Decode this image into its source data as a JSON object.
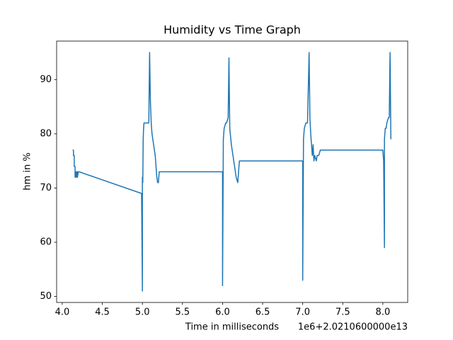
{
  "chart_data": {
    "type": "line",
    "title": "Humidity vs Time Graph",
    "x_label": "Time in milliseconds",
    "y_label": "hm in %",
    "x_offset_label": "1e6+2.0210600000e13",
    "x": [
      4.13,
      4.14,
      4.14,
      4.15,
      4.15,
      4.16,
      4.16,
      4.17,
      4.17,
      4.18,
      4.18,
      4.19,
      4.19,
      4.2,
      4.21,
      4.99,
      5.0,
      5.0,
      5.005,
      5.01,
      5.015,
      5.02,
      5.03,
      5.08,
      5.09,
      5.1,
      5.11,
      5.12,
      5.14,
      5.16,
      5.17,
      5.18,
      5.19,
      5.2,
      5.21,
      5.22,
      6.0,
      6.0,
      6.01,
      6.02,
      6.04,
      6.05,
      6.07,
      6.08,
      6.09,
      6.11,
      6.13,
      6.15,
      6.17,
      6.19,
      6.2,
      6.21,
      6.22,
      7.0,
      7.0,
      7.01,
      7.02,
      7.04,
      7.06,
      7.08,
      7.09,
      7.1,
      7.12,
      7.13,
      7.14,
      7.15,
      7.17,
      7.18,
      7.2,
      7.22,
      7.23,
      8.0,
      8.01,
      8.02,
      8.02,
      8.03,
      8.04,
      8.05,
      8.07,
      8.08,
      8.09,
      8.1
    ],
    "series": [
      {
        "color": "#1f77b4",
        "values": [
          77,
          77,
          76,
          76,
          74,
          74,
          72,
          73,
          72,
          73,
          72,
          73,
          72,
          73,
          73,
          69,
          51,
          72,
          71,
          79,
          81,
          82,
          82,
          82,
          95,
          86,
          82,
          80,
          78,
          76,
          74,
          72,
          71,
          71,
          73,
          73,
          73,
          52,
          79,
          81,
          82,
          82,
          83,
          94,
          81,
          78,
          76,
          74,
          72,
          71,
          73,
          75,
          75,
          75,
          53,
          79,
          81,
          82,
          82,
          95,
          83,
          80,
          76,
          78,
          75,
          76,
          75,
          76,
          76,
          77,
          77,
          77,
          75,
          59,
          79,
          81,
          81,
          82,
          83,
          83,
          95,
          79
        ]
      }
    ],
    "xlim": [
      3.93,
      8.31
    ],
    "ylim": [
      48.9,
      97.1
    ],
    "xticks": [
      {
        "value": 4,
        "label": "4.0"
      },
      4.5,
      {
        "value": 5,
        "label": "5.0"
      },
      5.5,
      {
        "value": 6,
        "label": "6.0"
      },
      6.5,
      {
        "value": 7,
        "label": "7.0"
      },
      7.5,
      {
        "value": 8,
        "label": "8.0"
      }
    ],
    "yticks": [
      50,
      60,
      70,
      80,
      90
    ]
  }
}
